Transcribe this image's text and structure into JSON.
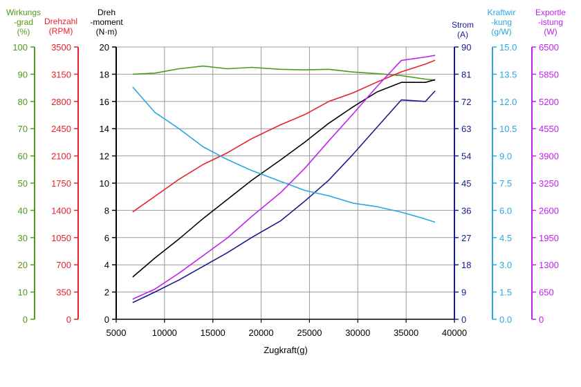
{
  "chart_data": {
    "type": "line",
    "xlabel": "Zugkraft(g)",
    "xlim": [
      5000,
      40000
    ],
    "xticks": [
      5000,
      10000,
      15000,
      20000,
      25000,
      30000,
      35000,
      40000
    ],
    "grid": true,
    "axes": [
      {
        "id": "eff",
        "title": [
          "Wirkungs",
          "-grad",
          "(%)"
        ],
        "color": "#4e9a1a",
        "ticks": [
          "0",
          "10",
          "20",
          "30",
          "40",
          "50",
          "60",
          "70",
          "80",
          "90",
          "100"
        ],
        "min": 0,
        "max": 100
      },
      {
        "id": "rpm",
        "title": [
          "Drehzahl",
          "(RPM)"
        ],
        "color": "#e8212b",
        "ticks": [
          "0",
          "350",
          "700",
          "1050",
          "1400",
          "1750",
          "2100",
          "2450",
          "2800",
          "3150",
          "3500"
        ],
        "min": 0,
        "max": 3500
      },
      {
        "id": "torque",
        "title": [
          "Dreh",
          "-moment",
          "(N·m)"
        ],
        "color": "#000000",
        "ticks": [
          "0",
          "2",
          "4",
          "6",
          "8",
          "10",
          "12",
          "14",
          "16",
          "18",
          "20"
        ],
        "min": 0,
        "max": 20
      },
      {
        "id": "current",
        "title": [
          "Strom",
          "(A)"
        ],
        "color": "#1a1a8c",
        "ticks": [
          "0",
          "9",
          "18",
          "27",
          "36",
          "45",
          "54",
          "63",
          "72",
          "81",
          "90"
        ],
        "min": 0,
        "max": 90
      },
      {
        "id": "force",
        "title": [
          "Kraftwir",
          "-kung",
          "(g/W)"
        ],
        "color": "#29a8e0",
        "ticks": [
          "0.0",
          "1.5",
          "3.0",
          "4.5",
          "6.0",
          "7.5",
          "9.0",
          "10.5",
          "12.0",
          "13.5",
          "15.0"
        ],
        "min": 0,
        "max": 15
      },
      {
        "id": "power",
        "title": [
          "Exportle",
          "-istung",
          "(W)"
        ],
        "color": "#c21ff0",
        "ticks": [
          "0",
          "650",
          "1300",
          "1950",
          "2600",
          "3250",
          "3900",
          "4550",
          "5200",
          "5850",
          "6500"
        ],
        "min": 0,
        "max": 6500
      }
    ],
    "series": [
      {
        "axis": "eff",
        "color": "#4e9a1a",
        "x": [
          6700,
          9000,
          11500,
          14000,
          16500,
          19000,
          22000,
          24500,
          27000,
          29500,
          32000,
          34500,
          37000,
          38000
        ],
        "y": [
          90,
          90.4,
          92,
          93,
          92,
          92.5,
          91.8,
          91.6,
          91.8,
          90.8,
          90.2,
          89.5,
          88.2,
          87.8
        ]
      },
      {
        "axis": "rpm",
        "color": "#e8212b",
        "x": [
          6700,
          9000,
          11500,
          14000,
          16500,
          19000,
          22000,
          24500,
          27000,
          29500,
          32000,
          34500,
          37000,
          38000
        ],
        "y": [
          1380,
          1580,
          1800,
          1990,
          2140,
          2320,
          2500,
          2630,
          2800,
          2910,
          3050,
          3180,
          3280,
          3330
        ]
      },
      {
        "axis": "torque",
        "color": "#000000",
        "x": [
          6700,
          9000,
          11500,
          14000,
          16500,
          19000,
          22000,
          24500,
          27000,
          29500,
          32000,
          34500,
          37000,
          38000
        ],
        "y": [
          3.1,
          4.5,
          5.9,
          7.4,
          8.8,
          10.2,
          11.7,
          13.0,
          14.4,
          15.6,
          16.7,
          17.4,
          17.4,
          17.6
        ]
      },
      {
        "axis": "current",
        "color": "#1a1a8c",
        "x": [
          6700,
          9000,
          11500,
          14000,
          16500,
          19000,
          22000,
          24500,
          27000,
          29500,
          32000,
          34500,
          37000,
          38000
        ],
        "y": [
          5.5,
          9,
          13,
          17.5,
          22,
          27,
          32.5,
          39,
          46,
          54.5,
          63.5,
          72.5,
          72,
          75.5
        ]
      },
      {
        "axis": "force",
        "color": "#29a8e0",
        "x": [
          6700,
          9000,
          11500,
          14000,
          16500,
          19000,
          22000,
          24500,
          27000,
          29500,
          32000,
          34500,
          36500,
          38000
        ],
        "y": [
          12.8,
          11.4,
          10.5,
          9.5,
          8.8,
          8.2,
          7.6,
          7.1,
          6.8,
          6.4,
          6.2,
          5.9,
          5.6,
          5.35
        ]
      },
      {
        "axis": "power",
        "color": "#c21ff0",
        "x": [
          6700,
          9000,
          11500,
          14000,
          16500,
          19000,
          22000,
          24500,
          27000,
          29500,
          32000,
          34500,
          37000,
          38000
        ],
        "y": [
          480,
          720,
          1100,
          1520,
          1940,
          2450,
          3020,
          3600,
          4260,
          4900,
          5560,
          6180,
          6260,
          6300
        ]
      }
    ]
  }
}
